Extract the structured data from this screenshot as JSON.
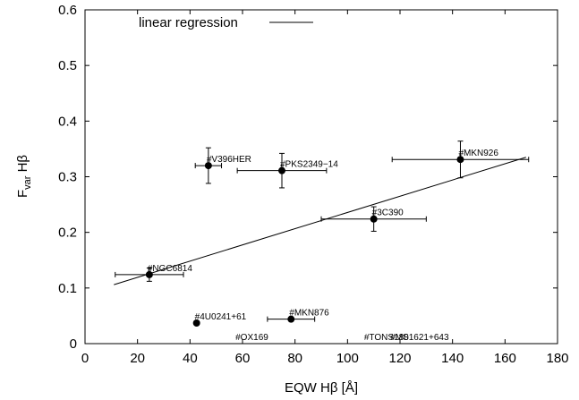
{
  "chart_data": {
    "type": "scatter",
    "title": "",
    "xlabel": {
      "main": "EQW H",
      "greek": "β",
      "unit": " [Å]"
    },
    "ylabel": {
      "main": "F",
      "sub": "var",
      "rest": " H",
      "greek": "β"
    },
    "xlim": [
      0,
      180
    ],
    "ylim": [
      0,
      0.6
    ],
    "xticks": [
      0,
      20,
      40,
      60,
      80,
      100,
      120,
      140,
      160,
      180
    ],
    "yticks": [
      0,
      0.1,
      0.2,
      0.3,
      0.4,
      0.5,
      0.6
    ],
    "xtick_labels": [
      "0",
      "20",
      "40",
      "60",
      "80",
      "100",
      "120",
      "140",
      "160",
      "180"
    ],
    "ytick_labels": [
      "0",
      "0.1",
      "0.2",
      "0.3",
      "0.4",
      "0.5",
      "0.6"
    ],
    "grid": false,
    "legend": {
      "position": "top-left",
      "entries": [
        "linear regression"
      ]
    },
    "points": [
      {
        "label": "#NGC6814",
        "x": 24.5,
        "y": 0.124,
        "xerr": 13,
        "yerr": 0.012
      },
      {
        "label": "#V396HER",
        "x": 47,
        "y": 0.32,
        "xerr": 5,
        "yerr": 0.032
      },
      {
        "label": "#PKS2349−14",
        "x": 75,
        "y": 0.311,
        "xerr": 17,
        "yerr": 0.031
      },
      {
        "label": "#3C390",
        "x": 110,
        "y": 0.224,
        "xerr": 20,
        "yerr": 0.022
      },
      {
        "label": "#MKN926",
        "x": 143,
        "y": 0.331,
        "xerr": 26,
        "yerr": 0.033
      },
      {
        "label": "#4U0241+61",
        "x": 42.5,
        "y": 0.037,
        "xerr": 0,
        "yerr": 0
      },
      {
        "label": "#MKN876",
        "x": 78.5,
        "y": 0.044,
        "xerr": 9,
        "yerr": 0
      }
    ],
    "labels_only": [
      {
        "label": "#OX169",
        "x": 58,
        "y": 0.0
      },
      {
        "label": "#TONS180",
        "x": 107,
        "y": 0.0
      },
      {
        "label": "#MS1621+643",
        "x": 117,
        "y": 0.0
      }
    ],
    "regression": {
      "name": "linear regression",
      "x": [
        11,
        168
      ],
      "y": [
        0.106,
        0.335
      ]
    }
  }
}
